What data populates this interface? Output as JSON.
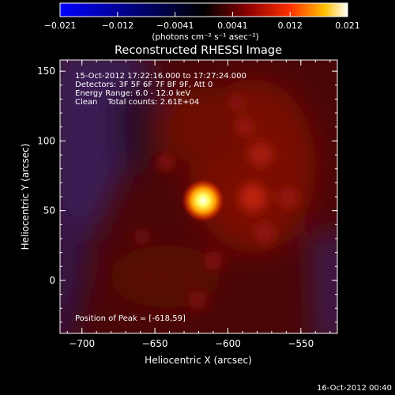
{
  "colorbar": {
    "tick_labels": [
      "-0.021",
      "-0.012",
      "-0.0041",
      "0.0041",
      "0.012",
      "0.021"
    ],
    "unit_label": "(photons cm⁻² s⁻¹ asec⁻²)"
  },
  "title": "Reconstructed RHESSI Image",
  "info_lines": [
    "15-Oct-2012 17:22:16.000 to 17:27:24.000",
    "Detectors: 3F 5F 6F 7F 8F 9F, Att 0",
    "Energy Range: 6.0 - 12.0 keV",
    "Clean    Total counts: 2.61E+04"
  ],
  "peak_label": "Position of Peak = [-618,59]",
  "axes": {
    "xlabel": "Heliocentric X (arcsec)",
    "ylabel": "Heliocentric Y (arcsec)",
    "xlim": [
      -715,
      -525
    ],
    "ylim": [
      -38,
      158
    ],
    "x_ticks": [
      "-700",
      "-650",
      "-600",
      "-550"
    ],
    "y_ticks": [
      "0",
      "50",
      "100",
      "150"
    ]
  },
  "timestamp": "16-Oct-2012 00:40",
  "peak": {
    "x": -618,
    "y": 59
  }
}
